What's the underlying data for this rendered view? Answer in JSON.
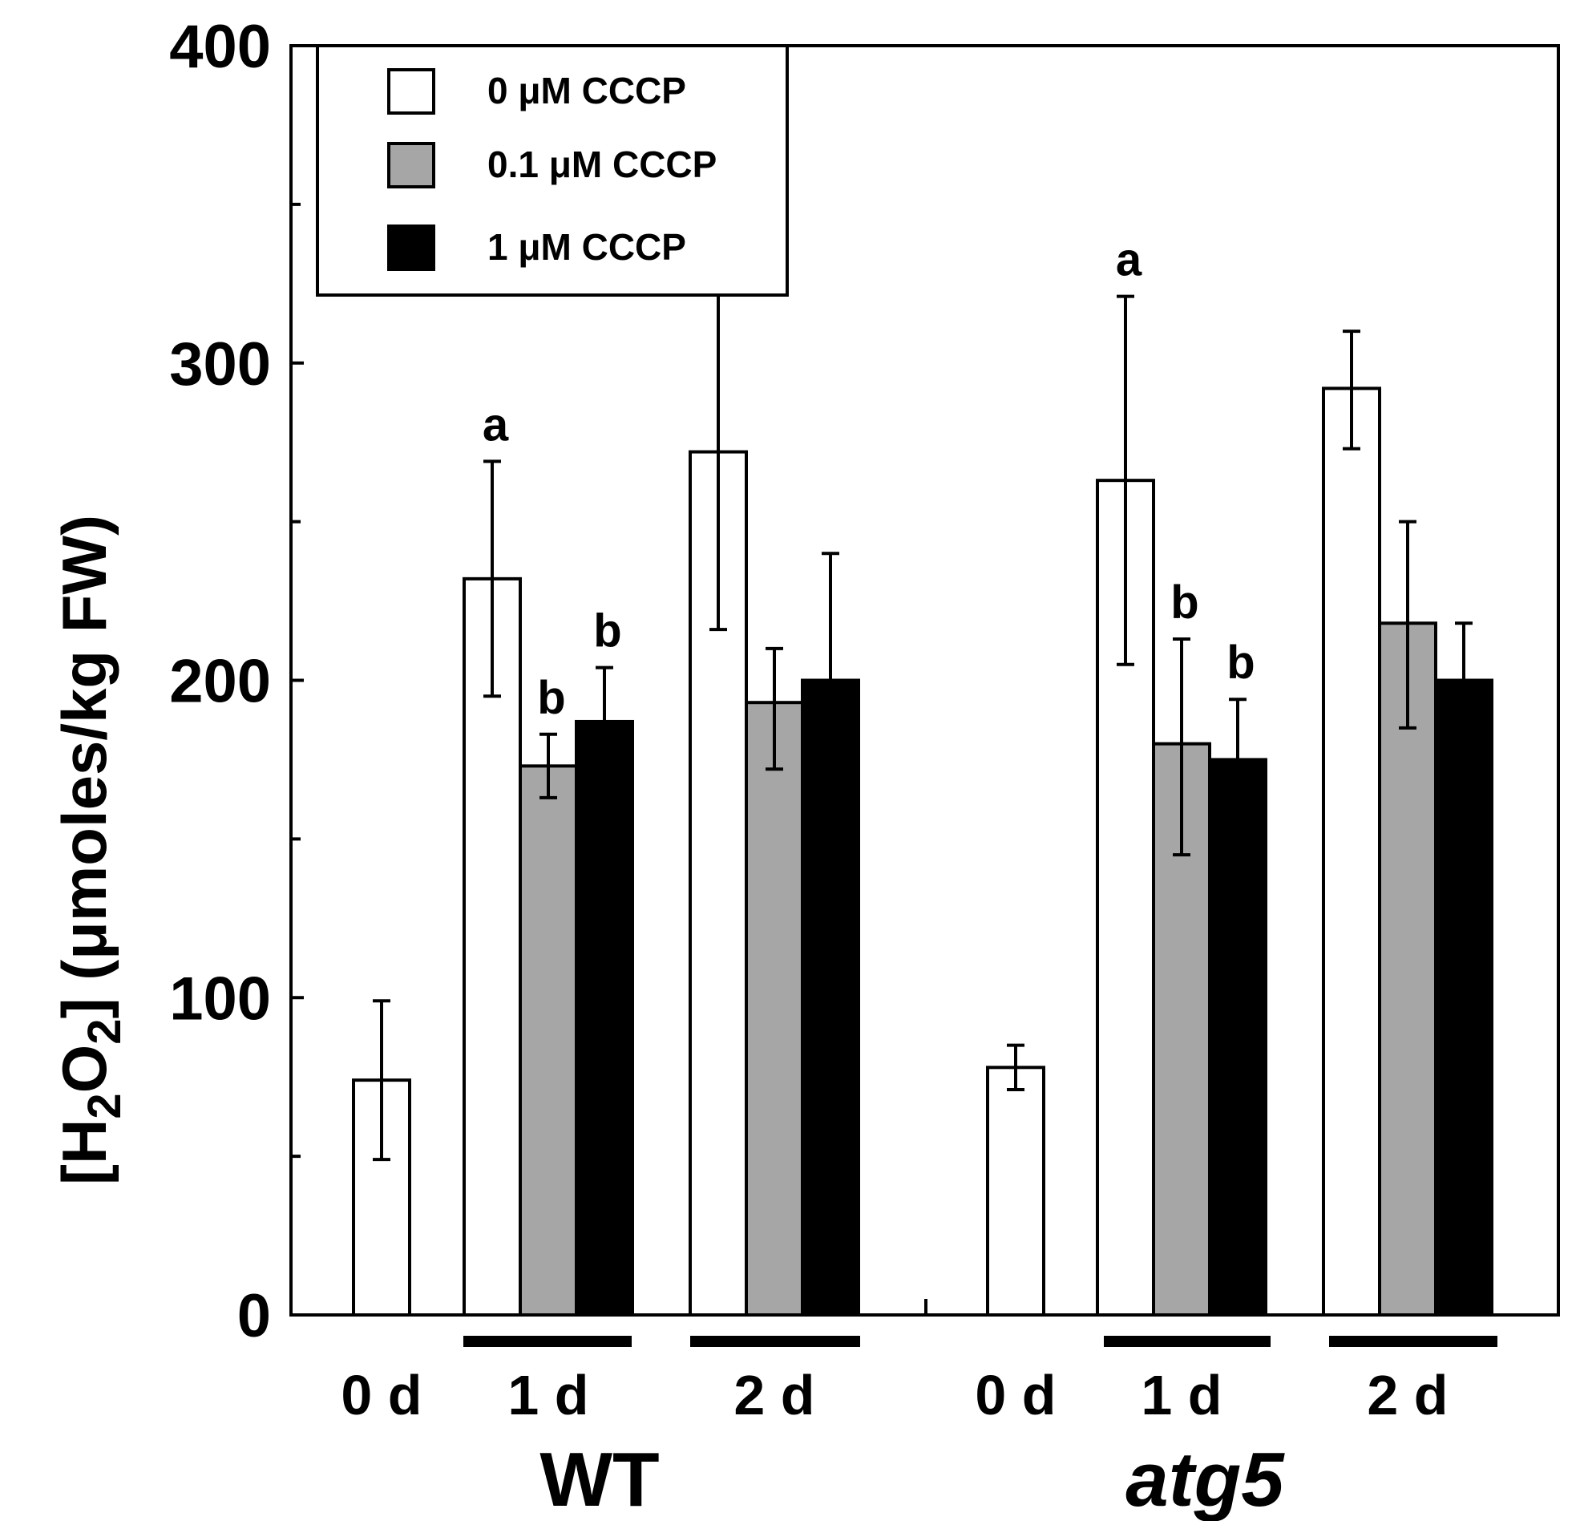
{
  "chart_data": {
    "type": "bar",
    "ylabel": {
      "open": "[H",
      "sub1": "2",
      "mid": "O",
      "sub2": "2",
      "close": "] (μmoles/kg FW)"
    },
    "ylim": [
      0,
      400
    ],
    "y_ticks": [
      0,
      100,
      200,
      300,
      400
    ],
    "y_minor_ticks": [
      50,
      150,
      250,
      350
    ],
    "legend_position": "top-left",
    "series": [
      {
        "name": "0 μM CCCP",
        "color": "#ffffff"
      },
      {
        "name": "0.1 μM CCCP",
        "color": "#a6a6a6"
      },
      {
        "name": "1 μM CCCP",
        "color": "#000000"
      }
    ],
    "groups": [
      {
        "label": "WT",
        "italic": false,
        "categories": [
          {
            "label": "0 d",
            "bars": [
              {
                "series": 0,
                "value": 74,
                "err_low": 49,
                "err_high": 99,
                "sig": ""
              }
            ]
          },
          {
            "label": "1 d",
            "bars": [
              {
                "series": 0,
                "value": 232,
                "err_low": 195,
                "err_high": 269,
                "sig": "a"
              },
              {
                "series": 1,
                "value": 173,
                "err_low": 163,
                "err_high": 183,
                "sig": "b"
              },
              {
                "series": 2,
                "value": 187,
                "err_low": 170,
                "err_high": 204,
                "sig": "b"
              }
            ]
          },
          {
            "label": "2 d",
            "bars": [
              {
                "series": 0,
                "value": 272,
                "err_low": 216,
                "err_high": 328,
                "sig": ""
              },
              {
                "series": 1,
                "value": 193,
                "err_low": 172,
                "err_high": 210,
                "sig": ""
              },
              {
                "series": 2,
                "value": 200,
                "err_low": 160,
                "err_high": 240,
                "sig": ""
              }
            ]
          }
        ]
      },
      {
        "label": "atg5",
        "italic": true,
        "categories": [
          {
            "label": "0 d",
            "bars": [
              {
                "series": 0,
                "value": 78,
                "err_low": 71,
                "err_high": 85,
                "sig": ""
              }
            ]
          },
          {
            "label": "1 d",
            "bars": [
              {
                "series": 0,
                "value": 263,
                "err_low": 205,
                "err_high": 321,
                "sig": "a"
              },
              {
                "series": 1,
                "value": 180,
                "err_low": 145,
                "err_high": 213,
                "sig": "b"
              },
              {
                "series": 2,
                "value": 175,
                "err_low": 157,
                "err_high": 194,
                "sig": "b"
              }
            ]
          },
          {
            "label": "2 d",
            "bars": [
              {
                "series": 0,
                "value": 292,
                "err_low": 273,
                "err_high": 310,
                "sig": ""
              },
              {
                "series": 1,
                "value": 218,
                "err_low": 185,
                "err_high": 250,
                "sig": ""
              },
              {
                "series": 2,
                "value": 200,
                "err_low": 182,
                "err_high": 218,
                "sig": ""
              }
            ]
          }
        ]
      }
    ]
  }
}
